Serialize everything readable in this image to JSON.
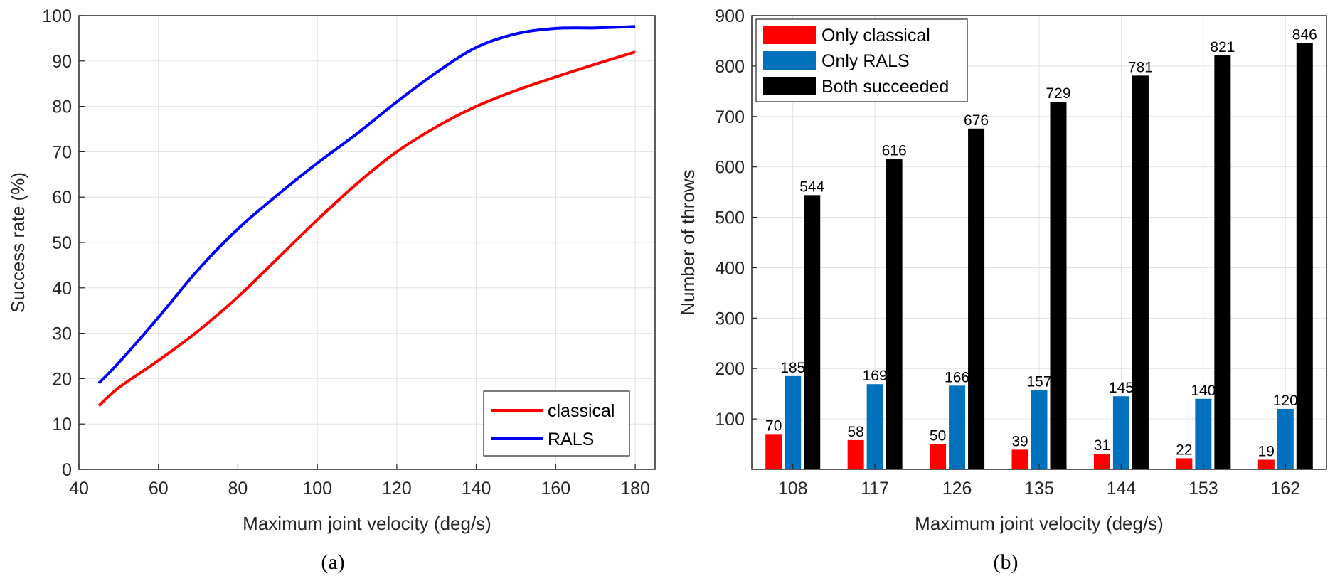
{
  "chart_data": [
    {
      "type": "line",
      "caption": "(a)",
      "xlabel": "Maximum joint velocity (deg/s)",
      "ylabel": "Success rate (%)",
      "xlim": [
        40,
        185
      ],
      "ylim": [
        0,
        100
      ],
      "xticks": [
        40,
        60,
        80,
        100,
        120,
        140,
        160,
        180
      ],
      "yticks": [
        0,
        10,
        20,
        30,
        40,
        50,
        60,
        70,
        80,
        90,
        100
      ],
      "grid": true,
      "legend_position": "bottom-right",
      "x": [
        45,
        50,
        60,
        70,
        80,
        90,
        100,
        110,
        120,
        130,
        140,
        150,
        160,
        170,
        180
      ],
      "series": [
        {
          "name": "classical",
          "color": "#ff0000",
          "values": [
            14,
            18,
            24,
            30.5,
            38,
            46.5,
            55,
            63,
            70,
            75.5,
            80,
            83.5,
            86.5,
            89.3,
            92
          ]
        },
        {
          "name": "RALS",
          "color": "#0000ff",
          "values": [
            19,
            23.5,
            33.5,
            44,
            53,
            60.5,
            67.5,
            74,
            81,
            87.5,
            93,
            96,
            97.2,
            97.3,
            97.6
          ]
        }
      ]
    },
    {
      "type": "bar",
      "caption": "(b)",
      "xlabel": "Maximum joint velocity (deg/s)",
      "ylabel": "Number of throws",
      "ylim": [
        0,
        900
      ],
      "yticks": [
        100,
        200,
        300,
        400,
        500,
        600,
        700,
        800,
        900
      ],
      "grid": true,
      "legend_position": "top-left",
      "categories": [
        "108",
        "117",
        "126",
        "135",
        "144",
        "153",
        "162"
      ],
      "series": [
        {
          "name": "Only classical",
          "color": "#ff0000",
          "values": [
            70,
            58,
            50,
            39,
            31,
            22,
            19
          ],
          "labels": [
            "70",
            "58",
            "50",
            "39",
            "31",
            "22",
            "19"
          ]
        },
        {
          "name": "Only RALS",
          "color": "#0072bd",
          "values": [
            185,
            169,
            166,
            157,
            145,
            140,
            120
          ],
          "labels": [
            "185",
            "169",
            "166",
            "157",
            "145",
            "140",
            "120"
          ]
        },
        {
          "name": "Both succeeded",
          "color": "#000000",
          "values": [
            544,
            616,
            676,
            729,
            781,
            821,
            846
          ],
          "labels": [
            "544",
            "616",
            "676",
            "729",
            "781",
            "821",
            "846"
          ]
        }
      ]
    }
  ]
}
